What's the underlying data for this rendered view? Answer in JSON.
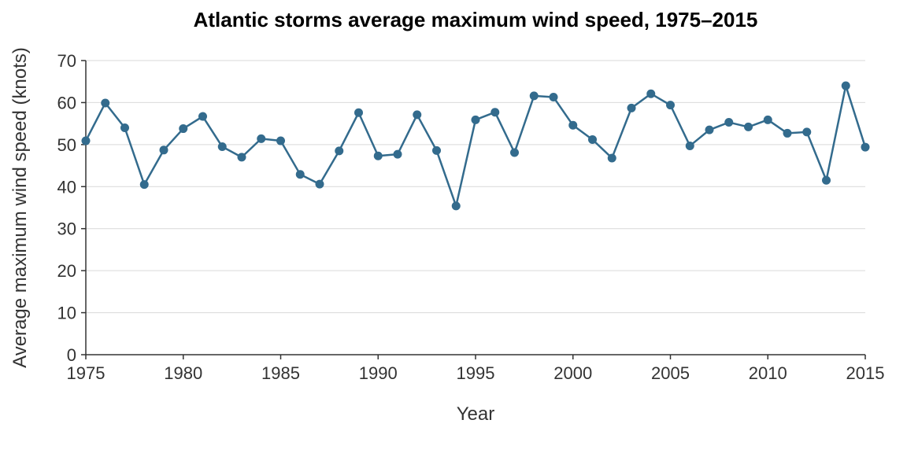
{
  "chart_data": {
    "type": "line",
    "title": "Atlantic storms average maximum wind speed, 1975–2015",
    "xlabel": "Year",
    "ylabel": "Average maximum wind speed (knots)",
    "xlim": [
      1975,
      2015
    ],
    "ylim": [
      0,
      70
    ],
    "xticks": [
      1975,
      1980,
      1985,
      1990,
      1995,
      2000,
      2005,
      2010,
      2015
    ],
    "yticks": [
      0,
      10,
      20,
      30,
      40,
      50,
      60,
      70
    ],
    "grid": true,
    "color": "#336b8d",
    "x": [
      1975,
      1976,
      1977,
      1978,
      1979,
      1980,
      1981,
      1982,
      1983,
      1984,
      1985,
      1986,
      1987,
      1988,
      1989,
      1990,
      1991,
      1992,
      1993,
      1994,
      1995,
      1996,
      1997,
      1998,
      1999,
      2000,
      2001,
      2002,
      2003,
      2004,
      2005,
      2006,
      2007,
      2008,
      2009,
      2010,
      2011,
      2012,
      2013,
      2014,
      2015
    ],
    "y": [
      50.9,
      59.9,
      54.0,
      40.5,
      48.7,
      53.8,
      56.7,
      49.5,
      47.0,
      51.4,
      50.9,
      42.9,
      40.6,
      48.5,
      57.6,
      47.3,
      47.7,
      57.1,
      48.6,
      35.4,
      55.9,
      57.7,
      48.1,
      61.6,
      61.3,
      54.6,
      51.2,
      46.8,
      58.7,
      62.1,
      59.4,
      49.7,
      53.5,
      55.3,
      54.2,
      55.9,
      52.7,
      53.0,
      41.5,
      64.0,
      49.4
    ]
  }
}
